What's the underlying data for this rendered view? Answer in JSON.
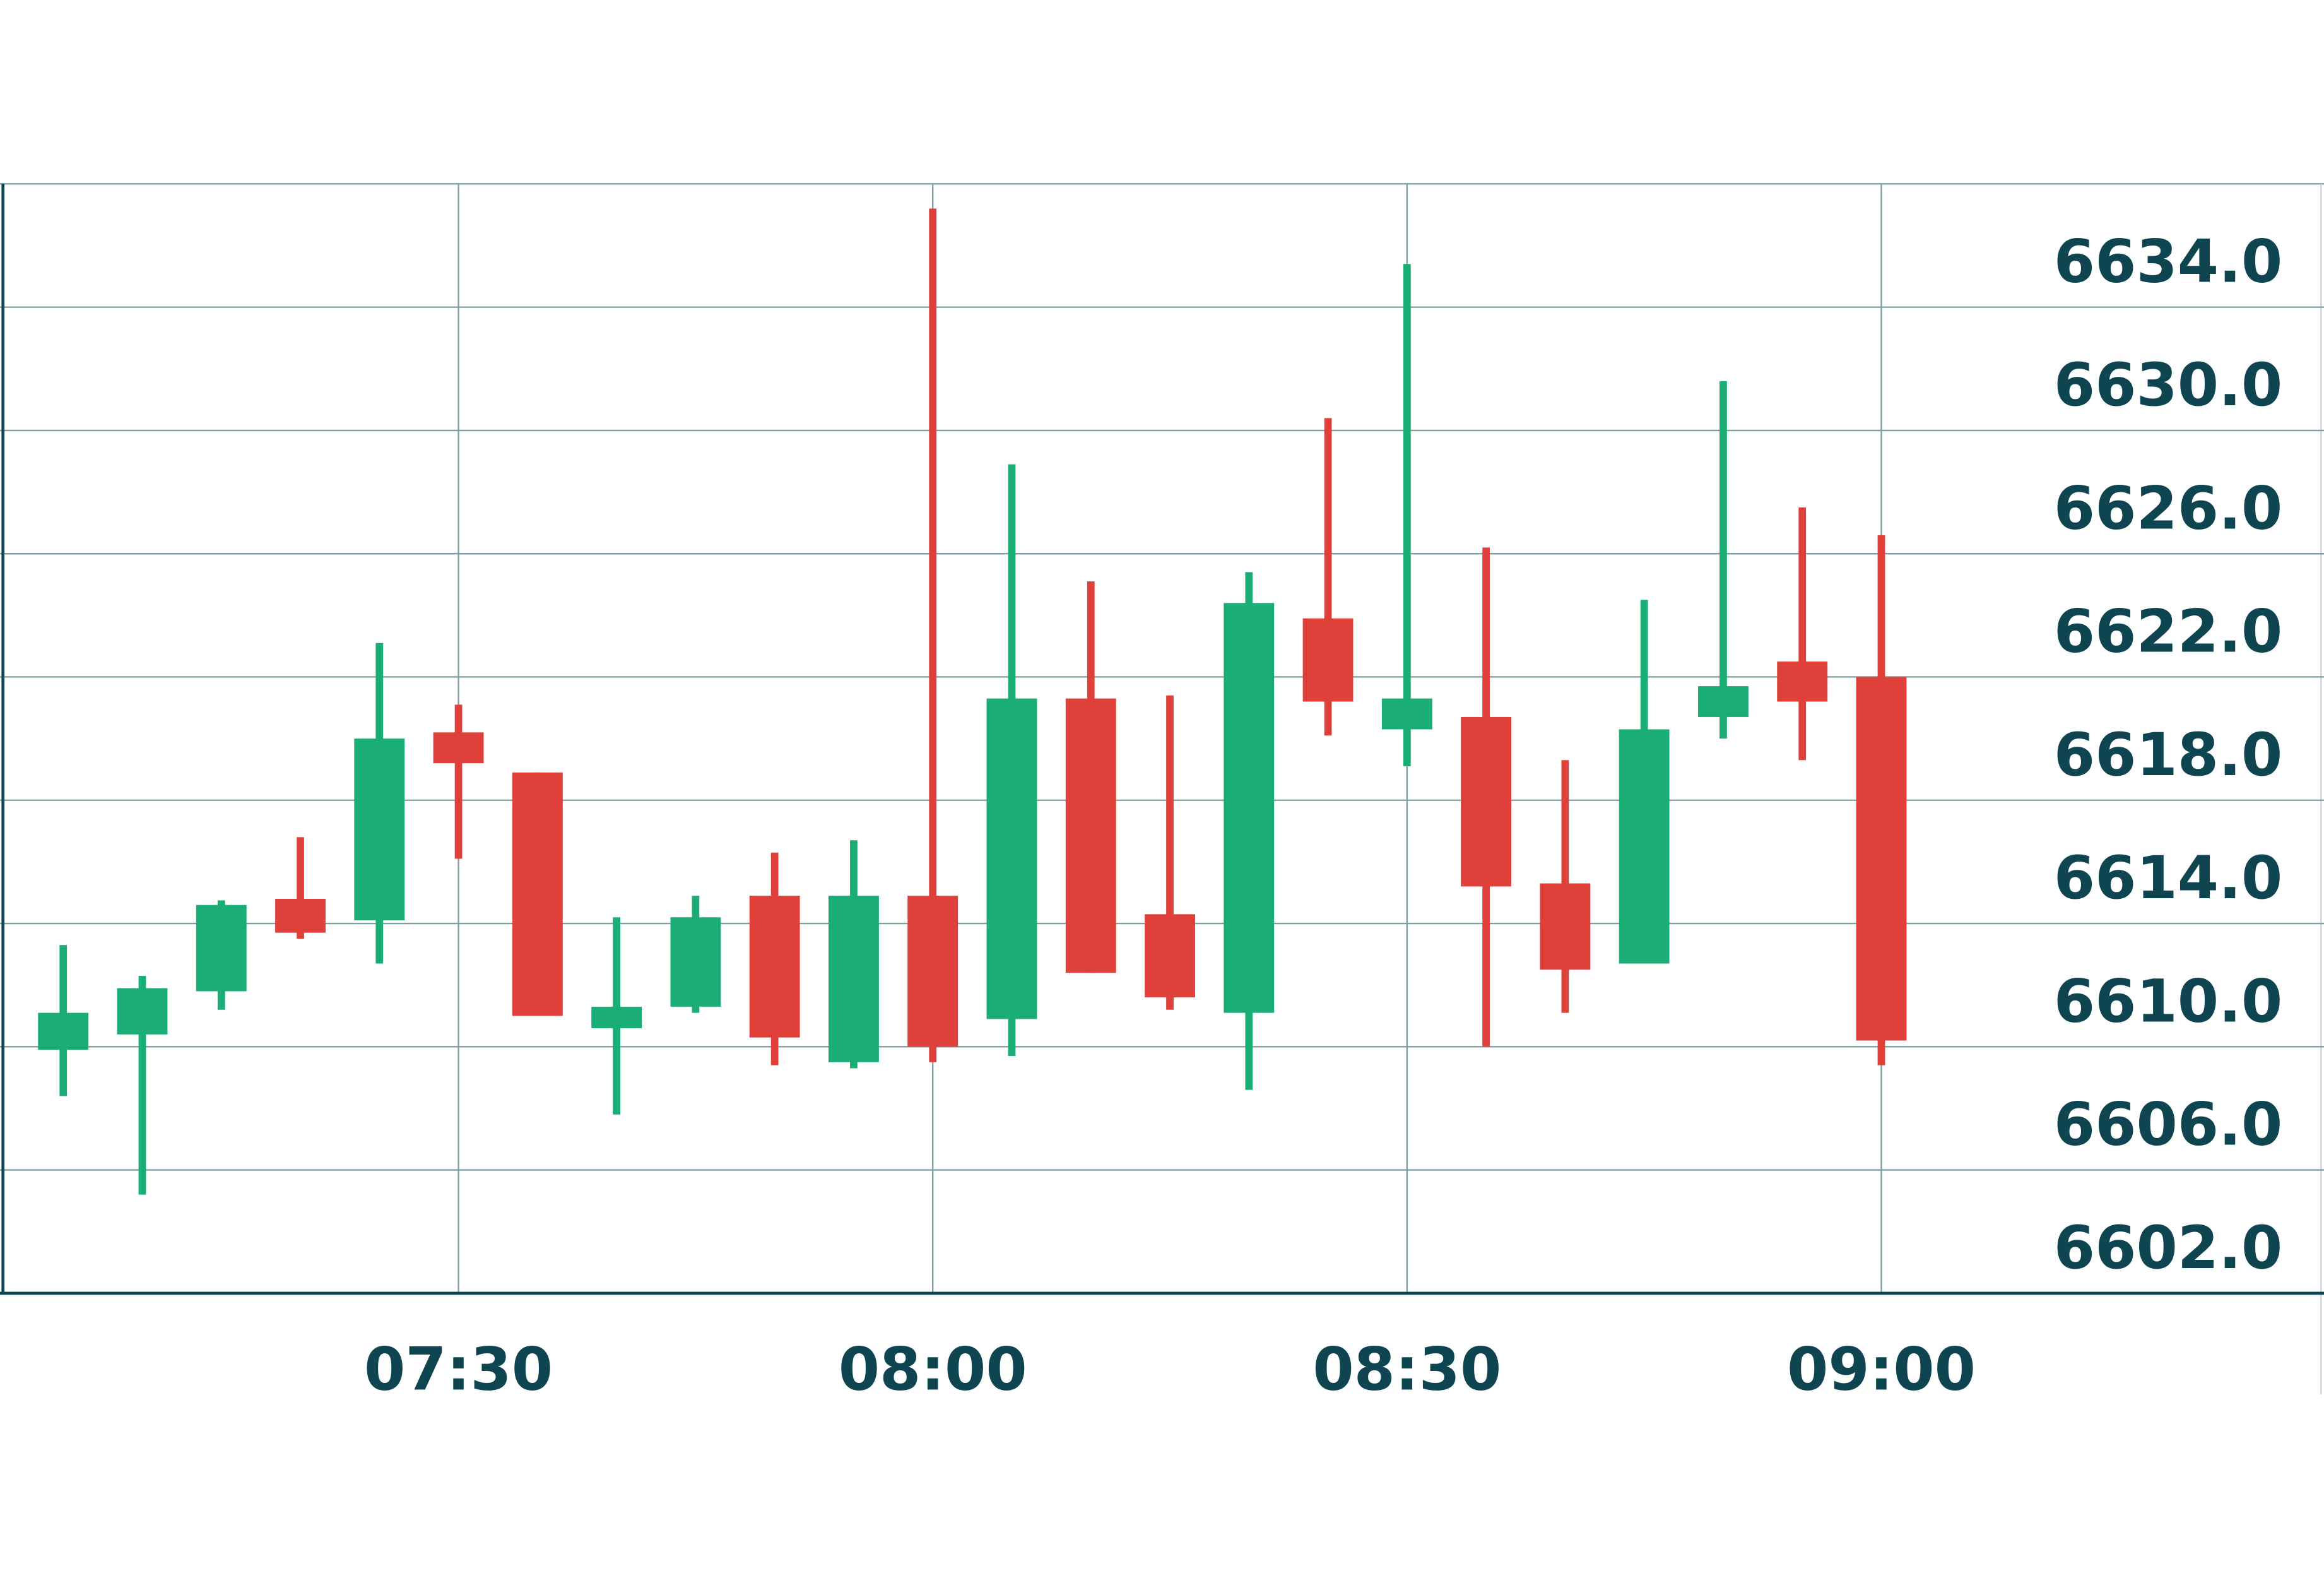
{
  "chart_data": {
    "type": "candlestick",
    "x": [
      "07:05",
      "07:10",
      "07:15",
      "07:20",
      "07:25",
      "07:30",
      "07:35",
      "07:40",
      "07:45",
      "07:50",
      "07:55",
      "08:00",
      "08:05",
      "08:10",
      "08:15",
      "08:20",
      "08:25",
      "08:30",
      "08:35",
      "08:40",
      "08:45",
      "08:50",
      "08:55",
      "09:00"
    ],
    "open": [
      6609.9,
      6610.4,
      6611.8,
      6614.8,
      6614.1,
      6620.2,
      6618.9,
      6610.6,
      6611.3,
      6614.9,
      6609.5,
      6614.9,
      6610.9,
      6621.3,
      6614.3,
      6611.1,
      6623.9,
      6620.3,
      6620.7,
      6615.3,
      6612.7,
      6620.7,
      6622.5,
      6622.0
    ],
    "high": [
      6613.3,
      6612.3,
      6614.75,
      6616.8,
      6623.1,
      6621.1,
      6618.9,
      6614.2,
      6614.9,
      6616.3,
      6616.7,
      6637.2,
      6628.9,
      6625.1,
      6621.4,
      6625.4,
      6630.4,
      6635.4,
      6626.2,
      6619.3,
      6624.5,
      6631.6,
      6627.5,
      6626.6
    ],
    "low": [
      6608.4,
      6605.2,
      6611.2,
      6613.5,
      6612.7,
      6616.1,
      6611.0,
      6607.8,
      6611.1,
      6609.4,
      6609.3,
      6609.5,
      6609.7,
      6612.4,
      6611.2,
      6608.6,
      6620.1,
      6619.1,
      6610.0,
      6611.1,
      6612.7,
      6620.0,
      6619.3,
      6609.4
    ],
    "close": [
      6611.1,
      6611.9,
      6614.6,
      6613.7,
      6620.0,
      6619.2,
      6611.0,
      6611.3,
      6614.2,
      6610.3,
      6614.9,
      6610.0,
      6621.3,
      6612.4,
      6611.6,
      6624.4,
      6621.2,
      6621.3,
      6615.2,
      6612.5,
      6620.3,
      6621.7,
      6621.2,
      6610.2
    ],
    "up_color": "#1aad76",
    "down_color": "#e0403a",
    "xlim": [
      "07:01",
      "09:28"
    ],
    "xticks": [
      "07:30",
      "08:00",
      "08:30",
      "09:00"
    ],
    "ylim": [
      6602,
      6638
    ],
    "yticks": [
      {
        "value": 6634,
        "label": "6634.0"
      },
      {
        "value": 6630,
        "label": "6630.0"
      },
      {
        "value": 6626,
        "label": "6626.0"
      },
      {
        "value": 6622,
        "label": "6622.0"
      },
      {
        "value": 6618,
        "label": "6618.0"
      },
      {
        "value": 6614,
        "label": "6614.0"
      },
      {
        "value": 6610,
        "label": "6610.0"
      },
      {
        "value": 6606,
        "label": "6606.0"
      },
      {
        "value": 6602,
        "label": "6602.0"
      }
    ],
    "grid": true
  }
}
